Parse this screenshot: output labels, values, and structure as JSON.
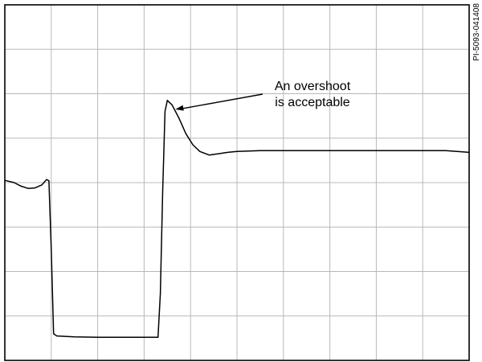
{
  "figure_id": "PI-5093-041408",
  "chart_data": {
    "type": "line",
    "title": "",
    "xlabel": "",
    "ylabel": "",
    "grid": true,
    "divisions": {
      "x": 10,
      "y": 8
    },
    "xlim": [
      0,
      10
    ],
    "ylim": [
      0,
      8
    ],
    "annotation": {
      "lines": [
        "An overshoot",
        "is acceptable"
      ],
      "points_to": {
        "x": 3.5,
        "y": 5.83
      }
    },
    "series": [
      {
        "points": [
          [
            0.0,
            4.05
          ],
          [
            0.2,
            4.0
          ],
          [
            0.35,
            3.92
          ],
          [
            0.5,
            3.87
          ],
          [
            0.65,
            3.88
          ],
          [
            0.8,
            3.95
          ],
          [
            0.9,
            4.07
          ],
          [
            0.95,
            4.04
          ],
          [
            1.0,
            2.5
          ],
          [
            1.05,
            0.6
          ],
          [
            1.12,
            0.55
          ],
          [
            1.5,
            0.53
          ],
          [
            2.0,
            0.52
          ],
          [
            2.5,
            0.52
          ],
          [
            3.0,
            0.52
          ],
          [
            3.3,
            0.52
          ],
          [
            3.35,
            1.5
          ],
          [
            3.4,
            3.8
          ],
          [
            3.45,
            5.6
          ],
          [
            3.5,
            5.85
          ],
          [
            3.6,
            5.75
          ],
          [
            3.75,
            5.45
          ],
          [
            3.9,
            5.1
          ],
          [
            4.05,
            4.85
          ],
          [
            4.2,
            4.7
          ],
          [
            4.4,
            4.62
          ],
          [
            4.6,
            4.65
          ],
          [
            4.8,
            4.68
          ],
          [
            5.0,
            4.7
          ],
          [
            5.5,
            4.72
          ],
          [
            6.0,
            4.72
          ],
          [
            7.0,
            4.72
          ],
          [
            8.0,
            4.72
          ],
          [
            9.0,
            4.72
          ],
          [
            9.5,
            4.72
          ],
          [
            10.0,
            4.68
          ]
        ]
      }
    ]
  }
}
